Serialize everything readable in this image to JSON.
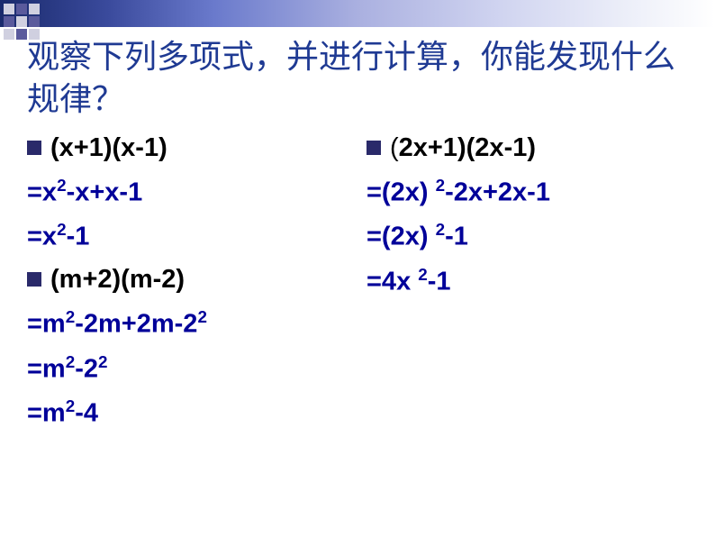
{
  "title": "观察下列多项式，并进行计算，你能发现什么规律？",
  "colors": {
    "title_color": "#1f3a93",
    "math_color": "#000099",
    "bullet_color": "#2a2a6a",
    "gradient_start": "#1a2a6c",
    "gradient_end": "#ffffff",
    "background": "#ffffff"
  },
  "typography": {
    "title_fontsize": 36,
    "math_fontsize": 29,
    "math_weight": "bold",
    "title_family": "SimSun"
  },
  "left": {
    "eq1": {
      "prompt": "(x+1)(x-1)",
      "step1_a": "=x",
      "step1_exp1": "2",
      "step1_b": "-x+x-1",
      "step2_a": "=x",
      "step2_exp1": "2",
      "step2_b": "-1"
    },
    "eq2": {
      "prompt": "(m+2)(m-2)",
      "step1_a": "=m",
      "step1_exp1": "2",
      "step1_b": "-2m+2m-2",
      "step1_exp2": "2",
      "step2_a": "=m",
      "step2_exp1": "2",
      "step2_b": "-2",
      "step2_exp2": "2",
      "step3_a": "=m",
      "step3_exp1": "2",
      "step3_b": "-4"
    }
  },
  "right": {
    "eq1": {
      "prompt_a": "(",
      "prompt_b": "2x+1)(2x-1)",
      "step1_a": "=(2x) ",
      "step1_exp1": "2",
      "step1_b": "-2x+2x-1",
      "step2_a": "=(2x) ",
      "step2_exp1": "2",
      "step2_b": "-1",
      "step3_a": "=4x ",
      "step3_exp1": "2",
      "step3_b": "-1"
    }
  }
}
